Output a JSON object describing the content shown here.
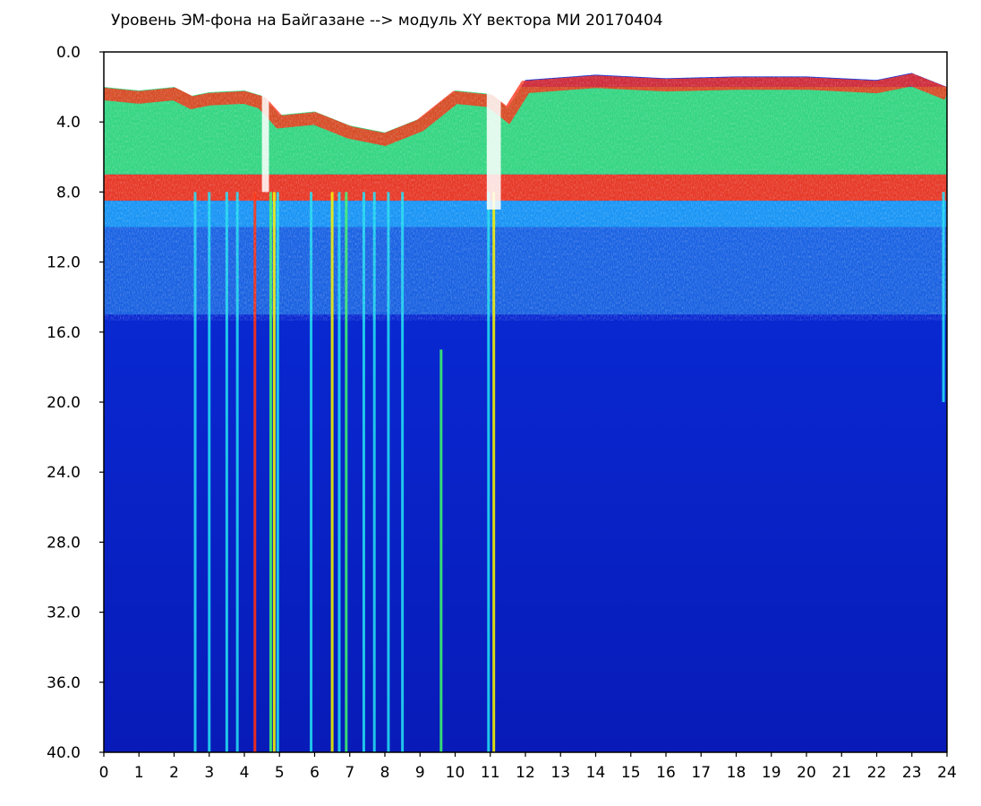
{
  "chart_data": {
    "type": "heatmap",
    "title": "Уровень ЭМ-фона на Байгазане  --> модуль XY вектора МИ  20170404",
    "xlabel": "",
    "ylabel": "",
    "xlim": [
      0,
      24
    ],
    "ylim": [
      0,
      40
    ],
    "y_inverted": true,
    "x_ticks": [
      "0",
      "1",
      "2",
      "3",
      "4",
      "5",
      "6",
      "7",
      "8",
      "9",
      "10",
      "11",
      "12",
      "13",
      "14",
      "15",
      "16",
      "17",
      "18",
      "19",
      "20",
      "21",
      "22",
      "23",
      "24"
    ],
    "y_ticks": [
      "0.0",
      "4.0",
      "8.0",
      "12.0",
      "16.0",
      "20.0",
      "24.0",
      "28.0",
      "32.0",
      "36.0",
      "40.0"
    ],
    "colormap": [
      "#0a1fc8",
      "#0a3cf0",
      "#1e78ff",
      "#22d8f0",
      "#3cf070",
      "#a8f020",
      "#f0f000",
      "#ff3010",
      "#ffffff"
    ],
    "background_color": "#0a1fc8",
    "grid": false,
    "bands": [
      {
        "name": "upper",
        "y_from": 2.0,
        "y_to": 7.0,
        "intensity": "high"
      },
      {
        "name": "red-line",
        "y_from": 7.0,
        "y_to": 8.5,
        "intensity": "max"
      },
      {
        "name": "transition",
        "y_from": 8.5,
        "y_to": 10.0,
        "intensity": "medium"
      },
      {
        "name": "cyan-band",
        "y_from": 10.0,
        "y_to": 15.0,
        "intensity": "low-medium"
      },
      {
        "name": "background",
        "y_from": 15.0,
        "y_to": 40.0,
        "intensity": "low"
      }
    ],
    "upper_band_top_profile": {
      "x": [
        0,
        1,
        2,
        2.5,
        3,
        4,
        4.5,
        5,
        6,
        7,
        8,
        9,
        10,
        11,
        11.5,
        12,
        14,
        16,
        18,
        20,
        22,
        23,
        24
      ],
      "y": [
        2.0,
        2.2,
        2.0,
        2.5,
        2.3,
        2.2,
        2.5,
        3.6,
        3.4,
        4.2,
        4.6,
        3.8,
        2.2,
        2.4,
        3.2,
        1.6,
        1.3,
        1.5,
        1.4,
        1.4,
        1.6,
        1.2,
        2.0
      ]
    },
    "vertical_streaks": [
      {
        "x": 2.6,
        "y_from": 8.0,
        "y_to": 40.0,
        "color": "#22d8f0"
      },
      {
        "x": 3.0,
        "y_from": 8.0,
        "y_to": 40.0,
        "color": "#22d8f0"
      },
      {
        "x": 3.5,
        "y_from": 8.0,
        "y_to": 40.0,
        "color": "#22d8f0"
      },
      {
        "x": 3.8,
        "y_from": 8.0,
        "y_to": 40.0,
        "color": "#22d8f0"
      },
      {
        "x": 4.3,
        "y_from": 8.0,
        "y_to": 40.0,
        "color": "#ff3010"
      },
      {
        "x": 4.75,
        "y_from": 8.0,
        "y_to": 40.0,
        "color": "#3cf070"
      },
      {
        "x": 4.85,
        "y_from": 8.0,
        "y_to": 40.0,
        "color": "#f0f000"
      },
      {
        "x": 4.95,
        "y_from": 8.0,
        "y_to": 40.0,
        "color": "#22d8f0"
      },
      {
        "x": 5.9,
        "y_from": 8.0,
        "y_to": 40.0,
        "color": "#22d8f0"
      },
      {
        "x": 6.5,
        "y_from": 8.0,
        "y_to": 40.0,
        "color": "#f0f000"
      },
      {
        "x": 6.7,
        "y_from": 8.0,
        "y_to": 40.0,
        "color": "#22d8f0"
      },
      {
        "x": 6.9,
        "y_from": 8.0,
        "y_to": 40.0,
        "color": "#3cf070"
      },
      {
        "x": 7.4,
        "y_from": 8.0,
        "y_to": 40.0,
        "color": "#22d8f0"
      },
      {
        "x": 7.7,
        "y_from": 8.0,
        "y_to": 40.0,
        "color": "#22d8f0"
      },
      {
        "x": 8.1,
        "y_from": 8.0,
        "y_to": 40.0,
        "color": "#22d8f0"
      },
      {
        "x": 8.5,
        "y_from": 8.0,
        "y_to": 40.0,
        "color": "#22d8f0"
      },
      {
        "x": 9.6,
        "y_from": 17.0,
        "y_to": 40.0,
        "color": "#3cf070"
      },
      {
        "x": 10.95,
        "y_from": 8.0,
        "y_to": 40.0,
        "color": "#22d8f0"
      },
      {
        "x": 11.1,
        "y_from": 8.0,
        "y_to": 40.0,
        "color": "#f0f000"
      },
      {
        "x": 23.9,
        "y_from": 8.0,
        "y_to": 20.0,
        "color": "#22d8f0"
      }
    ],
    "gaps": [
      {
        "x_from": 4.5,
        "x_to": 4.7,
        "y_from": 2.0,
        "y_to": 8.0
      },
      {
        "x_from": 10.9,
        "x_to": 11.3,
        "y_from": 2.0,
        "y_to": 9.0
      }
    ]
  }
}
